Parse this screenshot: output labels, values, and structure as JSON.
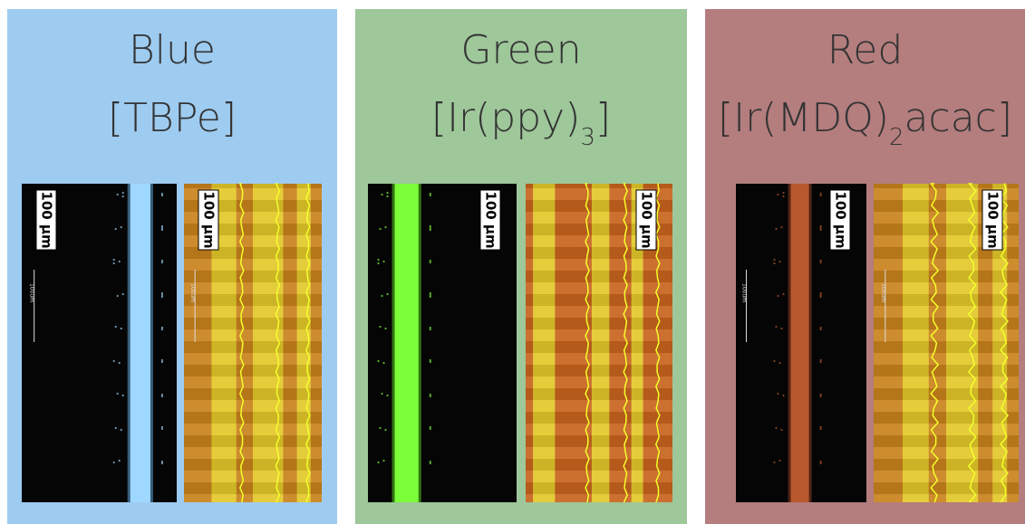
{
  "panels": [
    {
      "title": "Blue",
      "subtitle": [
        "[TBPe]"
      ],
      "images": [
        {
          "scale_label": "100 µm",
          "bar_label": "100um"
        },
        {
          "scale_label": "100 µm",
          "bar_label": "100um"
        }
      ]
    },
    {
      "title": "Green",
      "subtitle": [
        "[Ir(ppy)",
        "3",
        "]"
      ],
      "images": [
        {
          "scale_label": "100 µm"
        },
        {
          "scale_label": "100 µm"
        }
      ]
    },
    {
      "title": "Red",
      "subtitle": [
        "[Ir(MDQ)",
        "2",
        "acac]"
      ],
      "images": [
        {
          "scale_label": "100 µm",
          "bar_label": "100um"
        },
        {
          "scale_label": "100 µm",
          "bar_label": "100um"
        }
      ]
    }
  ]
}
